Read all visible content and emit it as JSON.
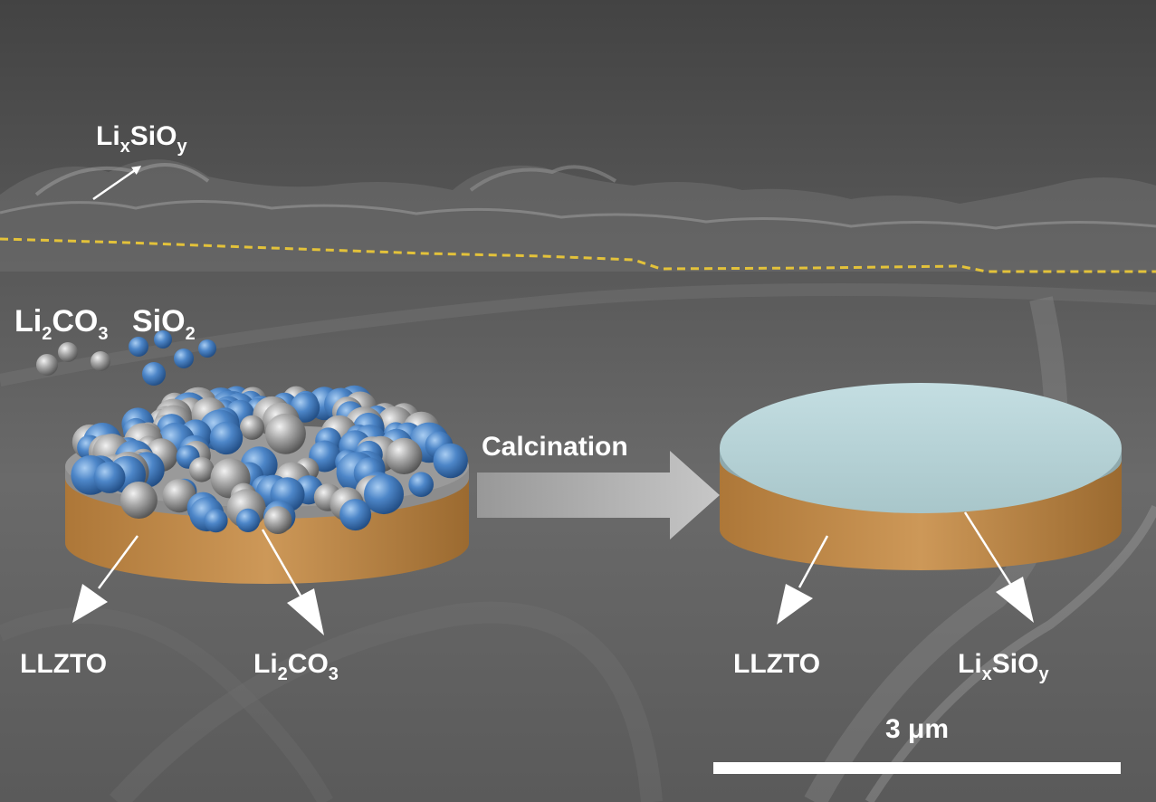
{
  "labels": {
    "top_left": {
      "main1": "Li",
      "sub1": "x",
      "main2": "SiO",
      "sub2": "y"
    },
    "precursors": {
      "li2co3": {
        "main1": "Li",
        "sub1": "2",
        "main2": "CO",
        "sub2": "3"
      },
      "sio2": {
        "main1": "SiO",
        "sub1": "2"
      }
    },
    "process": "Calcination",
    "left_disk": {
      "substrate": "LLZTO",
      "layer": {
        "main1": "Li",
        "sub1": "2",
        "main2": "CO",
        "sub2": "3"
      }
    },
    "right_disk": {
      "substrate": "LLZTO",
      "layer": {
        "main1": "Li",
        "sub1": "x",
        "main2": "SiO",
        "sub2": "y"
      }
    }
  },
  "scale_bar": {
    "label": "3 μm",
    "physical_length_um": 3
  },
  "colors": {
    "background": "#5e5e5e",
    "interface_line": "#e3c23a",
    "llzto": "#c58f4f",
    "li2co3_layer": "#9a9a9a",
    "sio2_particle": "#4d86c8",
    "li2co3_particle": "#a8a8a8",
    "lixsioy_layer": "#b6d2d6",
    "arrow": "#bdbdbd",
    "text": "#ffffff"
  }
}
